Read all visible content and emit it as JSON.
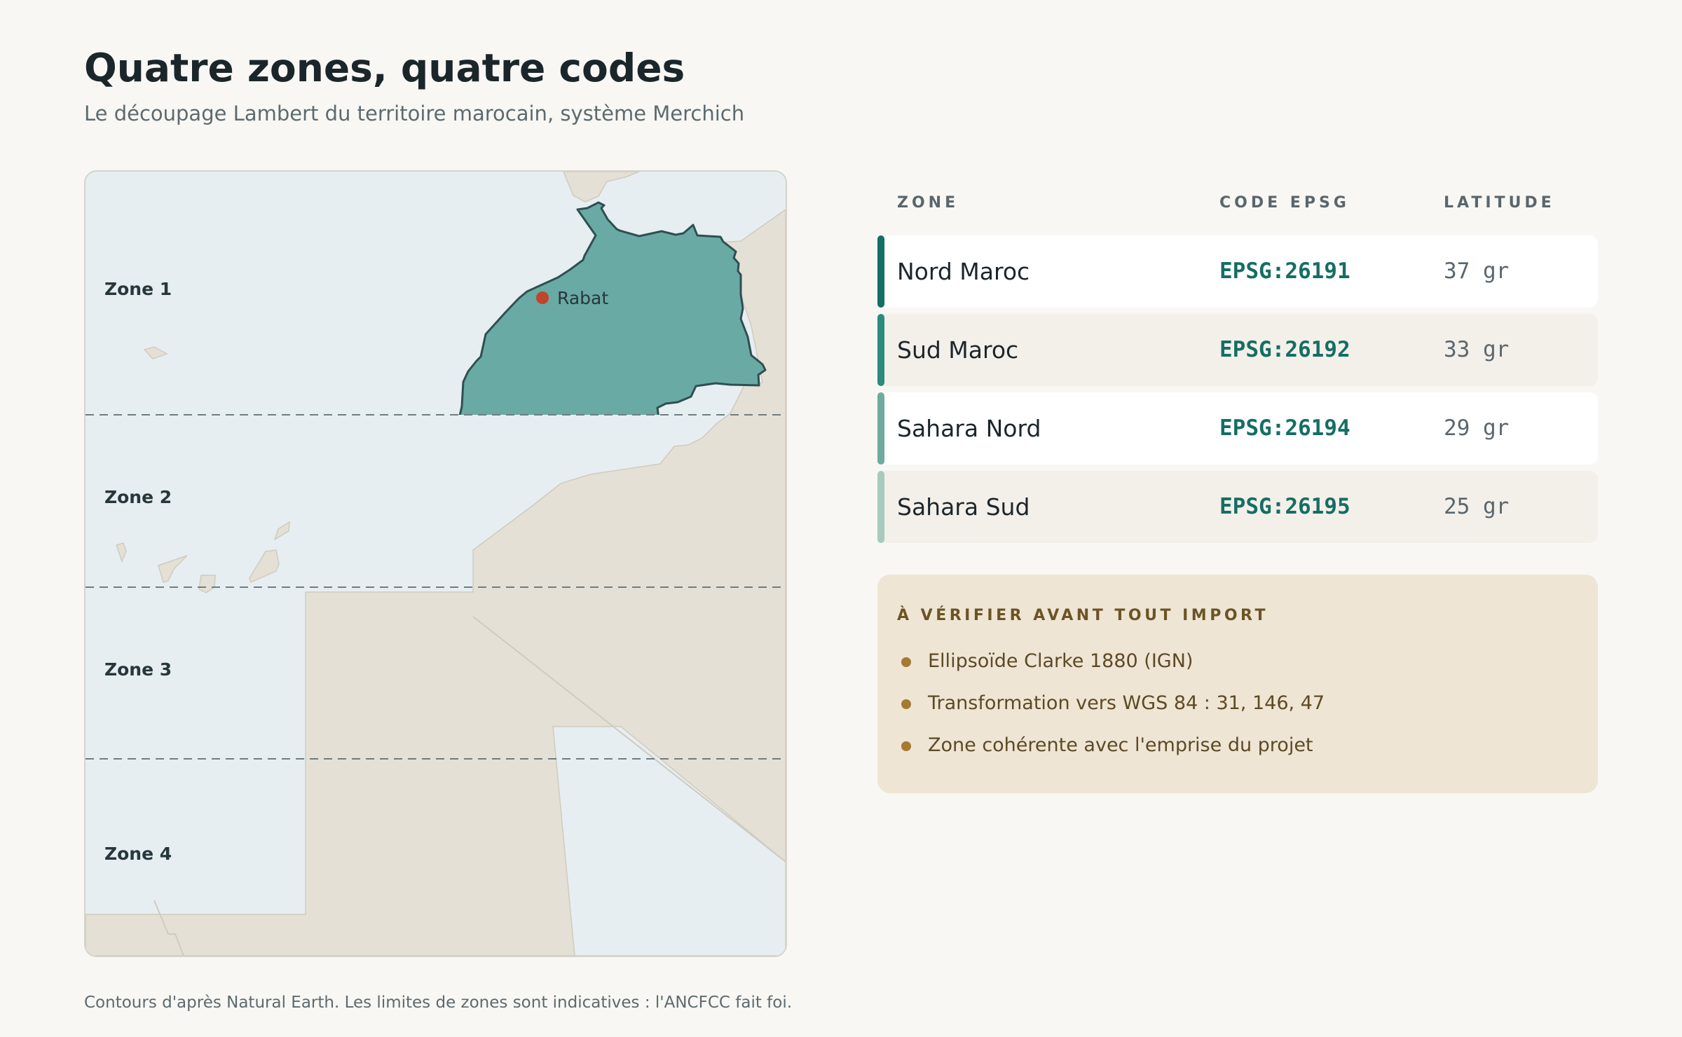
{
  "header": {
    "title": "Quatre zones, quatre codes",
    "subtitle": "Le découpage Lambert du territoire marocain, système Merchich"
  },
  "map": {
    "zone_labels": [
      "Zone 1",
      "Zone 2",
      "Zone 3",
      "Zone 4"
    ],
    "city": "Rabat",
    "colors": {
      "sea": "#e6eef1",
      "land": "#e5e0d5",
      "zone_1": "#6aaaa4",
      "zone_2": "#7fbcb4",
      "zone_3": "#a6cdc2",
      "zone_4": "#c9e0d9",
      "border": "#2f4f52",
      "city_marker": "#c0452a"
    }
  },
  "table": {
    "headers": {
      "zone": "ZONE",
      "code": "CODE EPSG",
      "latitude": "LATITUDE"
    },
    "rows": [
      {
        "zone": "Nord Maroc",
        "code": "EPSG:26191",
        "latitude": "37 gr",
        "accent": "#146e64",
        "background": "#ffffff"
      },
      {
        "zone": "Sud Maroc",
        "code": "EPSG:26192",
        "latitude": "33 gr",
        "accent": "#2d8a7d",
        "background": "#f3f0e9"
      },
      {
        "zone": "Sahara Nord",
        "code": "EPSG:26194",
        "latitude": "29 gr",
        "accent": "#6eab9d",
        "background": "#ffffff"
      },
      {
        "zone": "Sahara Sud",
        "code": "EPSG:26195",
        "latitude": "25 gr",
        "accent": "#a6cbbd",
        "background": "#f3f0e9"
      }
    ]
  },
  "checklist": {
    "title": "À VÉRIFIER AVANT TOUT IMPORT",
    "items": [
      "Ellipsoïde Clarke 1880 (IGN)",
      "Transformation vers WGS 84 : 31, 146, 47",
      "Zone cohérente avec l'emprise du projet"
    ]
  },
  "footer": {
    "note": "Contours d'après Natural Earth. Les limites de zones sont indicatives : l'ANCFCC fait foi."
  }
}
